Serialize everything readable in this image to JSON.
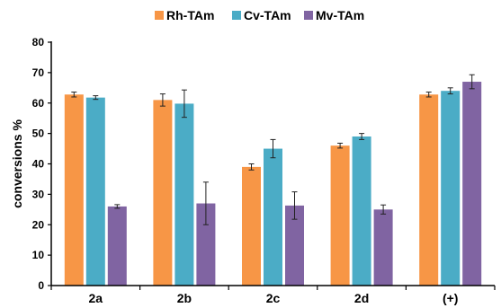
{
  "chart_data": {
    "type": "bar",
    "title": "",
    "xlabel": "",
    "ylabel": "conversions %",
    "ylim": [
      0,
      80
    ],
    "yticks": [
      0,
      10,
      20,
      30,
      40,
      50,
      60,
      70,
      80
    ],
    "grid": false,
    "legend_position": "top-center",
    "categories": [
      "2a",
      "2b",
      "2c",
      "2d",
      "(+)"
    ],
    "series": [
      {
        "name": "Rh-TAm",
        "color": "#F79646",
        "values": [
          62.8,
          61.0,
          39.0,
          46.0,
          62.8
        ],
        "errors": [
          0.8,
          2.0,
          1.0,
          0.8,
          0.8
        ]
      },
      {
        "name": "Cv-TAm",
        "color": "#4BACC6",
        "values": [
          61.8,
          59.8,
          45.0,
          49.0,
          64.0
        ],
        "errors": [
          0.6,
          4.5,
          3.0,
          1.0,
          1.0
        ]
      },
      {
        "name": "Mv-TAm",
        "color": "#8064A2",
        "values": [
          26.0,
          27.0,
          26.3,
          25.0,
          67.0
        ],
        "errors": [
          0.6,
          7.0,
          4.5,
          1.5,
          2.3
        ]
      }
    ]
  }
}
